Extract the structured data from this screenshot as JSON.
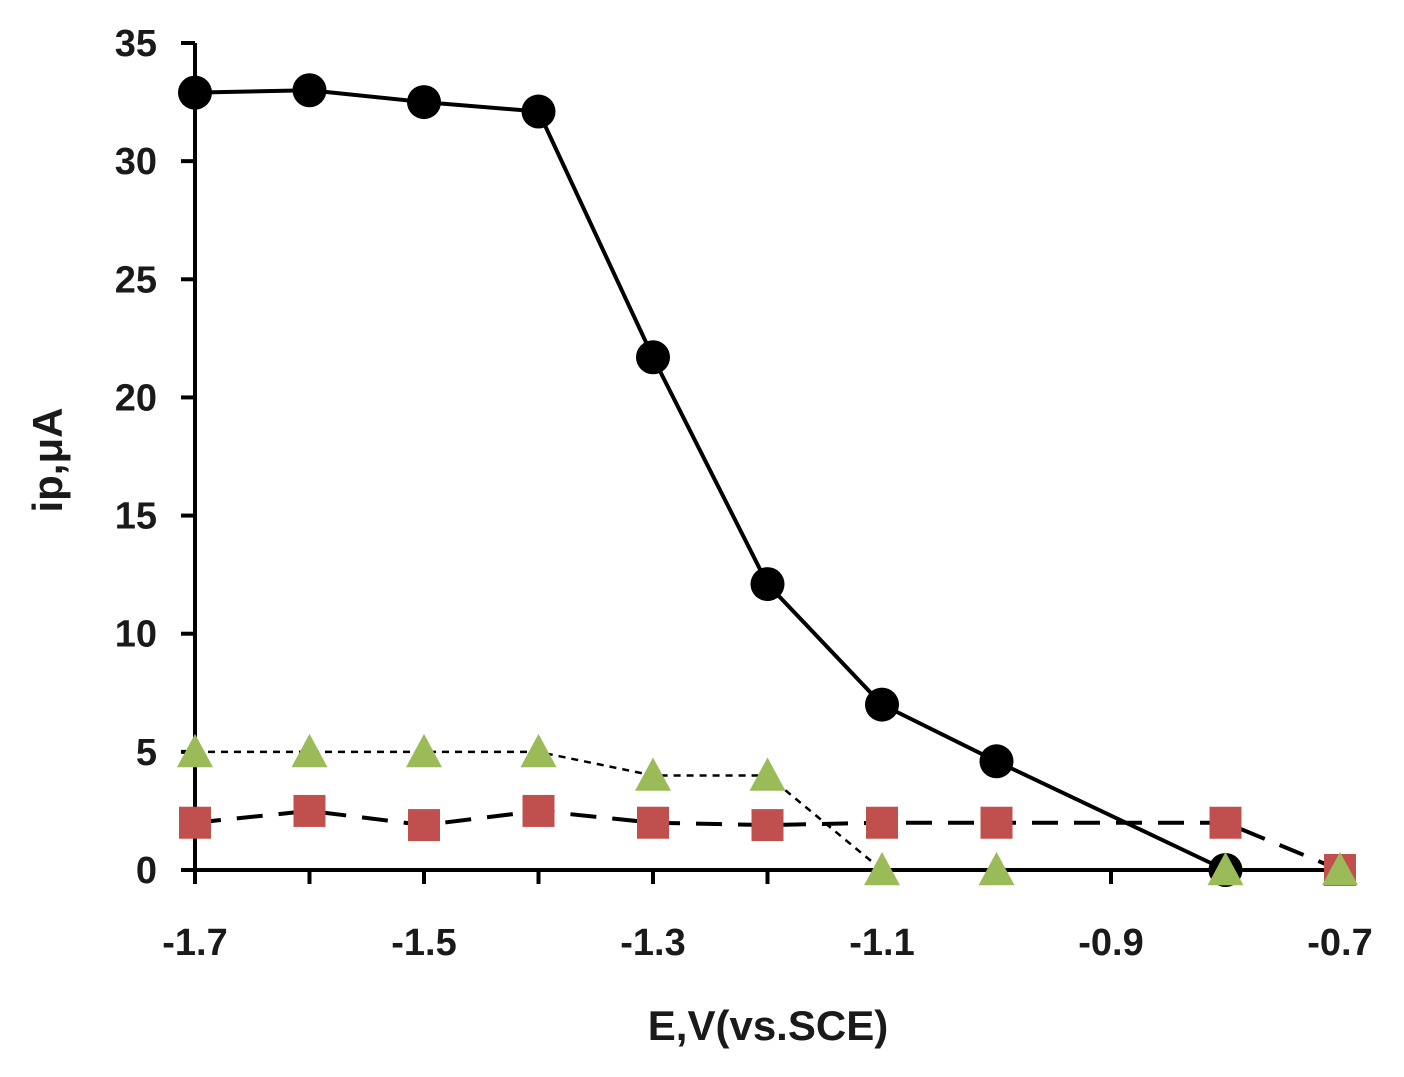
{
  "chart_data": {
    "type": "line",
    "title": "",
    "xlabel": "E,V(vs.SCE)",
    "ylabel": "ip,μA",
    "xlim": [
      -1.7,
      -0.7
    ],
    "ylim": [
      0,
      35
    ],
    "x_ticks": [
      -1.7,
      -1.5,
      -1.3,
      -1.1,
      -0.9,
      -0.7
    ],
    "x_tick_labels": [
      "-1.7",
      "-1.5",
      "-1.3",
      "-1.1",
      "-0.9",
      "-0.7"
    ],
    "y_ticks": [
      0,
      5,
      10,
      15,
      20,
      25,
      30,
      35
    ],
    "y_tick_labels": [
      "0",
      "5",
      "10",
      "15",
      "20",
      "25",
      "30",
      "35"
    ],
    "grid": false,
    "legend": null,
    "series": [
      {
        "name": "circle series",
        "marker": "circle",
        "line": "solid",
        "color": "#000000",
        "x": [
          -1.7,
          -1.6,
          -1.5,
          -1.4,
          -1.3,
          -1.2,
          -1.1,
          -1.0,
          -0.8
        ],
        "values": [
          32.9,
          33.0,
          32.5,
          32.1,
          21.7,
          12.1,
          7.0,
          4.6,
          0.0
        ]
      },
      {
        "name": "square series",
        "marker": "square",
        "line": "dashed",
        "color": "#c0504d",
        "line_color": "#000000",
        "x": [
          -1.7,
          -1.6,
          -1.5,
          -1.4,
          -1.3,
          -1.2,
          -1.1,
          -1.0,
          -0.8,
          -0.7
        ],
        "values": [
          2.0,
          2.5,
          1.9,
          2.5,
          2.0,
          1.9,
          2.0,
          2.0,
          2.0,
          0.0
        ]
      },
      {
        "name": "triangle series",
        "marker": "triangle",
        "line": "dotted",
        "color": "#9bbb59",
        "line_color": "#000000",
        "x": [
          -1.7,
          -1.6,
          -1.5,
          -1.4,
          -1.3,
          -1.2,
          -1.1,
          -1.0,
          -0.8,
          -0.7
        ],
        "values": [
          5.0,
          5.0,
          5.0,
          5.0,
          4.0,
          4.0,
          0.0,
          0.0,
          0.0,
          0.0
        ]
      }
    ]
  }
}
